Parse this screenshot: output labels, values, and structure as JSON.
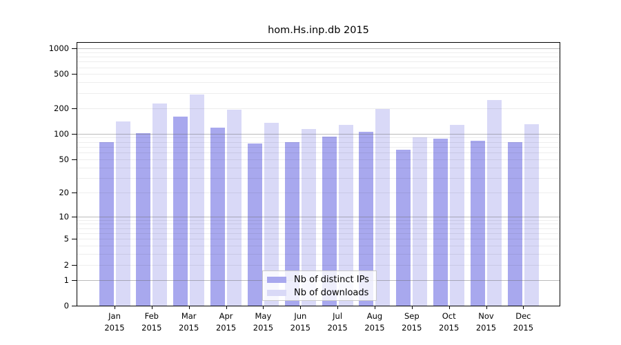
{
  "chart_data": {
    "type": "bar",
    "title": "hom.Hs.inp.db 2015",
    "categories": [
      "Jan",
      "Feb",
      "Mar",
      "Apr",
      "May",
      "Jun",
      "Jul",
      "Aug",
      "Sep",
      "Oct",
      "Nov",
      "Dec"
    ],
    "year_label": "2015",
    "series": [
      {
        "name": "Nb of distinct IPs",
        "color": "#a8a8ee",
        "values": [
          80,
          102,
          159,
          117,
          77,
          80,
          92,
          106,
          65,
          88,
          83,
          80
        ]
      },
      {
        "name": "Nb of downloads",
        "color": "#d9d9f7",
        "values": [
          140,
          226,
          287,
          192,
          134,
          114,
          128,
          195,
          90,
          127,
          250,
          130
        ]
      }
    ],
    "yscale": "log1p",
    "yticks": [
      0,
      1,
      2,
      5,
      10,
      20,
      50,
      100,
      200,
      500,
      1000
    ],
    "ylim": [
      0,
      1160
    ],
    "xlabel": "",
    "ylabel": "",
    "grid": "horizontal, minor log lines, darker lines at powers of 10",
    "legend_position": "bottom-center"
  }
}
